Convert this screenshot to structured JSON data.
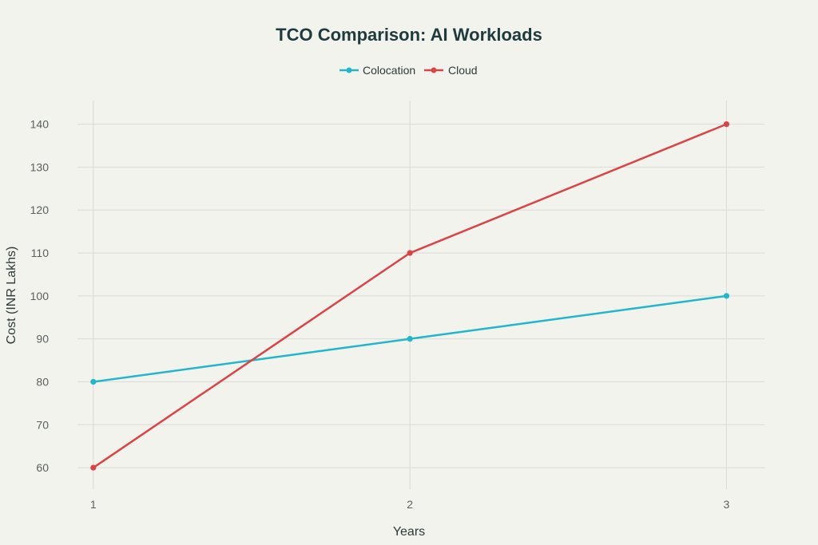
{
  "chart_data": {
    "type": "line",
    "title": "TCO Comparison: AI Workloads",
    "xlabel": "Years",
    "ylabel": "Cost (INR Lakhs)",
    "x": [
      1,
      2,
      3
    ],
    "x_ticks": [
      "1",
      "2",
      "3"
    ],
    "y_ticks": [
      60,
      70,
      80,
      90,
      100,
      110,
      120,
      130,
      140
    ],
    "xlim": [
      0.95,
      3.12
    ],
    "ylim": [
      55,
      145.5
    ],
    "grid": true,
    "legend_position": "top-center",
    "series": [
      {
        "name": "Colocation",
        "color": "#21b6cc",
        "values": [
          80,
          90,
          100
        ]
      },
      {
        "name": "Cloud",
        "color": "#d94545",
        "values": [
          60,
          110,
          140
        ]
      }
    ]
  }
}
